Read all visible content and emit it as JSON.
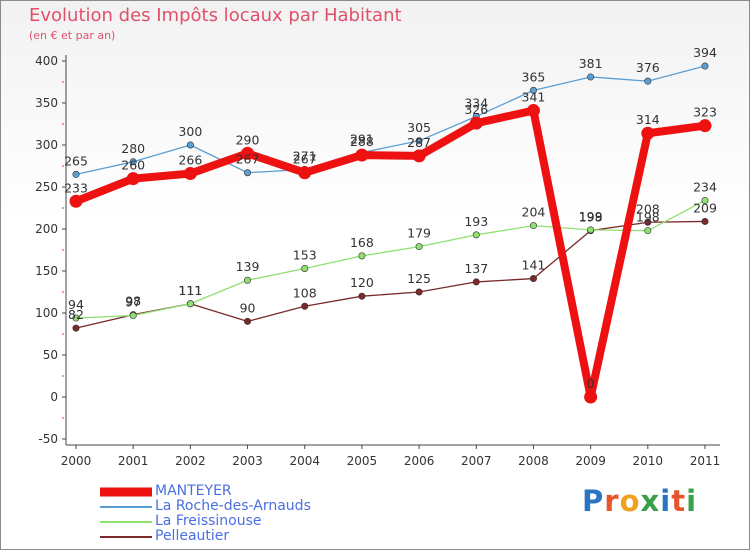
{
  "title": "Evolution des Impôts locaux par Habitant",
  "subtitle": "(en € et par an)",
  "brand": {
    "letters": [
      "P",
      "r",
      "o",
      "x",
      "i",
      "t",
      "i"
    ],
    "colors": [
      "#2b74c4",
      "#e8542c",
      "#f0a020",
      "#3aa04a",
      "#2b74c4",
      "#e8542c",
      "#3aa04a"
    ]
  },
  "chart_data": {
    "type": "line",
    "x": [
      "2000",
      "2001",
      "2002",
      "2003",
      "2004",
      "2005",
      "2006",
      "2007",
      "2008",
      "2009",
      "2010",
      "2011"
    ],
    "ylim": [
      -50,
      400
    ],
    "yticks": [
      "-50",
      "0",
      "50",
      "100",
      "150",
      "200",
      "250",
      "300",
      "350",
      "400"
    ],
    "grid": false,
    "legend_position": "bottom-left",
    "series": [
      {
        "name": "MANTEYER",
        "color": "#ee1111",
        "values": [
          233,
          260,
          266,
          290,
          267,
          288,
          287,
          326,
          341,
          0,
          314,
          323
        ],
        "labels": [
          "233",
          "260",
          "266",
          "290",
          "267",
          "288",
          "287",
          "326",
          "341",
          "0",
          "314",
          "323"
        ]
      },
      {
        "name": "La Roche-des-Arnauds",
        "color": "#5a9fd4",
        "values": [
          265,
          280,
          300,
          267,
          271,
          291,
          305,
          334,
          365,
          381,
          376,
          394
        ],
        "labels": [
          "265",
          "280",
          "300",
          "267",
          "271",
          "291",
          "305",
          "334",
          "365",
          "381",
          "376",
          "394"
        ]
      },
      {
        "name": "La Freissinouse",
        "color": "#90e070",
        "values": [
          94,
          97,
          111,
          139,
          153,
          168,
          179,
          193,
          204,
          199,
          198,
          234
        ],
        "labels": [
          "94",
          "97",
          "111",
          "139",
          "153",
          "168",
          "179",
          "193",
          "204",
          "199",
          "198",
          "234"
        ]
      },
      {
        "name": "Pelleautier",
        "color": "#7a2a2a",
        "values": [
          82,
          98,
          111,
          90,
          108,
          120,
          125,
          137,
          141,
          198,
          208,
          209
        ],
        "labels": [
          "82",
          "98",
          "111",
          "90",
          "108",
          "120",
          "125",
          "137",
          "141",
          "198",
          "208",
          "209"
        ]
      }
    ]
  }
}
